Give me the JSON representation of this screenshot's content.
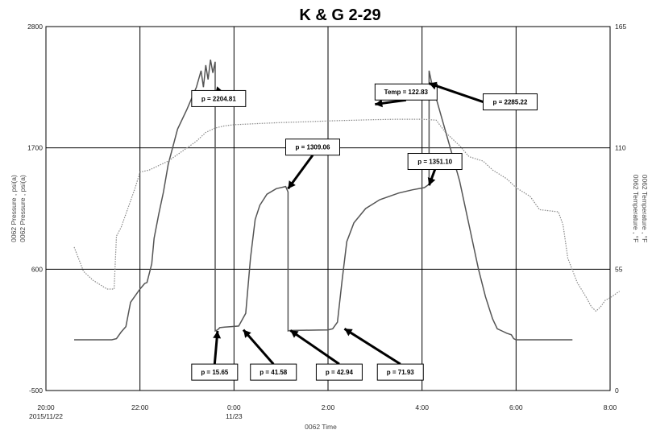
{
  "chart_data": {
    "type": "line",
    "title": "K & G 2-29",
    "xlabel": "0062 Time",
    "ylabel_left": [
      "0062 Pressure , psi(a)",
      "0062 Pressure , psi(a)"
    ],
    "ylabel_right": [
      "0062 Temperature , °F",
      "0062 Temperature , °F"
    ],
    "x_unit": "hours since 2015/11/22 00:00",
    "xlim": [
      20,
      32
    ],
    "ylim_left": [
      -500,
      2800
    ],
    "ylim_right": [
      0,
      165
    ],
    "x_ticks": [
      {
        "value": 20,
        "label": "20:00",
        "sublabel": "2015/11/22"
      },
      {
        "value": 22,
        "label": "22:00",
        "sublabel": ""
      },
      {
        "value": 24,
        "label": "0:00",
        "sublabel": "11/23"
      },
      {
        "value": 26,
        "label": "2:00",
        "sublabel": ""
      },
      {
        "value": 28,
        "label": "4:00",
        "sublabel": ""
      },
      {
        "value": 30,
        "label": "6:00",
        "sublabel": ""
      },
      {
        "value": 32,
        "label": "8:00",
        "sublabel": ""
      }
    ],
    "y_ticks_left": [
      {
        "value": -500,
        "label": "-500"
      },
      {
        "value": 600,
        "label": "600"
      },
      {
        "value": 1700,
        "label": "1700"
      },
      {
        "value": 2800,
        "label": "2800"
      }
    ],
    "y_ticks_right": [
      {
        "value": 0,
        "label": "0"
      },
      {
        "value": 55,
        "label": "55"
      },
      {
        "value": 110,
        "label": "110"
      },
      {
        "value": 165,
        "label": "165"
      }
    ],
    "grid": true,
    "series": [
      {
        "name": "0062 Pressure",
        "axis": "left",
        "color": "#555555",
        "style": "solid",
        "x": [
          20.6,
          21.4,
          21.5,
          21.6,
          21.7,
          21.8,
          22.0,
          22.1,
          22.15,
          22.25,
          22.3,
          22.4,
          22.5,
          22.6,
          22.8,
          23.0,
          23.2,
          23.3,
          23.35,
          23.4,
          23.45,
          23.5,
          23.55,
          23.6,
          23.6,
          23.65,
          23.7,
          23.8,
          23.95,
          24.1,
          24.25,
          24.35,
          24.45,
          24.55,
          24.7,
          24.9,
          25.1,
          25.15,
          25.15,
          25.2,
          25.5,
          25.8,
          26.0,
          26.1,
          26.2,
          26.3,
          26.4,
          26.55,
          26.8,
          27.1,
          27.5,
          27.8,
          28.05,
          28.15,
          28.15,
          28.2,
          28.3,
          28.4,
          28.6,
          28.8,
          29.0,
          29.2,
          29.35,
          29.5,
          29.6,
          29.7,
          29.8,
          29.9,
          29.95,
          30.0,
          31.2
        ],
        "y": [
          -40,
          -40,
          -30,
          30,
          80,
          300,
          420,
          470,
          480,
          650,
          880,
          1100,
          1300,
          1550,
          1870,
          2050,
          2250,
          2400,
          2250,
          2450,
          2320,
          2500,
          2380,
          2480,
          40,
          50,
          70,
          75,
          80,
          85,
          200,
          700,
          1050,
          1180,
          1280,
          1330,
          1350,
          1300,
          40,
          45,
          47,
          48,
          50,
          60,
          120,
          500,
          850,
          1020,
          1150,
          1230,
          1290,
          1320,
          1340,
          1370,
          2400,
          2300,
          2150,
          2000,
          1700,
          1400,
          1000,
          600,
          350,
          150,
          60,
          40,
          20,
          5,
          -30,
          -40,
          -40
        ]
      },
      {
        "name": "0062 Temperature",
        "axis": "right",
        "color": "#888888",
        "style": "dotted",
        "x": [
          20.6,
          20.8,
          21.0,
          21.3,
          21.45,
          21.5,
          21.55,
          21.6,
          21.75,
          21.9,
          22.0,
          22.2,
          22.4,
          22.6,
          22.8,
          23.0,
          23.2,
          23.4,
          23.6,
          23.8,
          24.0,
          24.5,
          25.0,
          25.5,
          26.0,
          26.5,
          27.0,
          27.5,
          28.0,
          28.3,
          28.5,
          28.8,
          29.0,
          29.3,
          29.5,
          29.8,
          30.0,
          30.3,
          30.5,
          30.9,
          31.0,
          31.1,
          31.3,
          31.5,
          31.6,
          31.7,
          31.8,
          31.9,
          32.0,
          32.2
        ],
        "y": [
          65,
          54,
          50,
          46,
          46,
          70,
          72,
          74,
          83,
          92,
          99,
          100,
          102,
          104,
          107,
          110,
          113,
          117,
          119,
          120,
          120.5,
          121,
          121.5,
          121.8,
          122.2,
          122.5,
          122.8,
          123,
          123,
          122.6,
          117,
          111,
          106,
          104,
          100,
          96,
          92,
          88,
          82,
          81,
          75,
          60,
          49,
          42,
          38,
          36,
          38,
          41,
          42,
          45
        ]
      }
    ],
    "annotations": [
      {
        "label": "p = 2204.81",
        "box": [
          23.1,
          2220
        ],
        "target": [
          23.6,
          2185
        ]
      },
      {
        "label": "Temp = 122.83",
        "box": [
          27.0,
          2280
        ],
        "target": [
          27.0,
          2095
        ]
      },
      {
        "label": "p = 2285.22",
        "box": [
          29.3,
          2190
        ],
        "target": [
          28.15,
          2285
        ]
      },
      {
        "label": "p = 1309.06",
        "box": [
          25.1,
          1780
        ],
        "target": [
          25.15,
          1330
        ]
      },
      {
        "label": "p = 1351.10",
        "box": [
          27.7,
          1650
        ],
        "target": [
          28.15,
          1360
        ]
      },
      {
        "label": "p = 15.65",
        "box": [
          23.1,
          -260
        ],
        "target": [
          23.65,
          40
        ]
      },
      {
        "label": "p = 41.58",
        "box": [
          24.35,
          -260
        ],
        "target": [
          24.2,
          50
        ]
      },
      {
        "label": "p = 42.94",
        "box": [
          25.75,
          -260
        ],
        "target": [
          25.2,
          45
        ]
      },
      {
        "label": "p = 71.93",
        "box": [
          27.05,
          -260
        ],
        "target": [
          26.35,
          60
        ]
      }
    ]
  }
}
